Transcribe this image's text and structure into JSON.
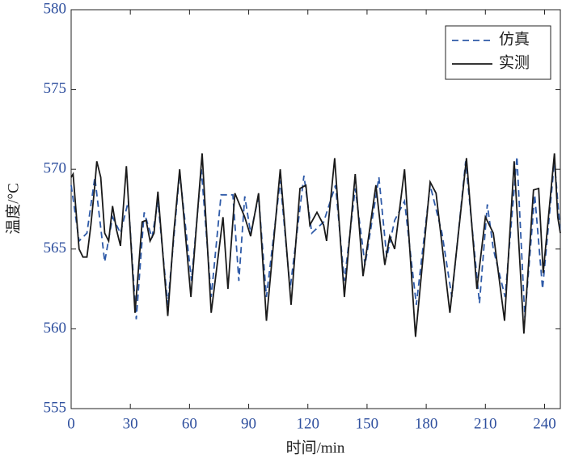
{
  "chart_data": {
    "type": "line",
    "x_label": "时间/min",
    "y_label": "温度/°C",
    "xlim": [
      0,
      248
    ],
    "ylim": [
      555,
      580
    ],
    "xticks": [
      0,
      30,
      60,
      90,
      120,
      150,
      180,
      210,
      240
    ],
    "yticks": [
      555,
      560,
      565,
      570,
      575,
      580
    ],
    "legend": "upper right",
    "series": [
      {
        "name": "仿真",
        "color": "#2e5aa8",
        "dash": true,
        "x": [
          0,
          4,
          8,
          12,
          17,
          21,
          25,
          29,
          33,
          37,
          41,
          44,
          49,
          55,
          61,
          66,
          71,
          76,
          82,
          85,
          88,
          91,
          95,
          99,
          106,
          111,
          118,
          122,
          128,
          134,
          138.5,
          144,
          149,
          156,
          160,
          164,
          169,
          175,
          182,
          188,
          193,
          200,
          207,
          211,
          214,
          220,
          226,
          230,
          235,
          239,
          245,
          248
        ],
        "values": [
          569,
          565.5,
          566,
          569.5,
          564.2,
          567,
          566,
          568,
          560.6,
          567.3,
          565.7,
          568,
          561.5,
          569.8,
          563,
          570,
          562,
          568.4,
          568.4,
          563,
          568.3,
          566,
          568.3,
          562,
          569.3,
          562.5,
          569.6,
          566,
          566.7,
          569,
          563,
          568.8,
          564,
          569.5,
          564.5,
          566.8,
          568,
          561.5,
          569,
          566,
          562,
          570.5,
          561.6,
          567.8,
          565,
          562,
          570.8,
          560.7,
          568.4,
          562.5,
          570.5,
          566
        ]
      },
      {
        "name": "实测",
        "color": "#1a1a1a",
        "dash": false,
        "x": [
          0,
          1,
          4,
          6,
          8,
          10,
          12,
          13,
          15,
          17,
          19,
          21,
          23,
          25,
          28,
          32.4,
          36,
          38,
          40,
          42,
          44,
          49,
          52,
          55,
          60.7,
          66.4,
          71,
          77,
          79.5,
          83,
          88,
          91,
          95,
          99,
          106,
          111.5,
          116,
          119,
          121,
          124.6,
          128,
          129.5,
          133.6,
          138.5,
          144,
          148,
          154.5,
          159,
          161.5,
          164,
          169,
          174.6,
          182,
          185,
          192,
          200.4,
          205.7,
          210,
          214,
          219.7,
          224.6,
          229.5,
          234.4,
          237,
          239.3,
          245,
          246.7,
          248
        ],
        "values": [
          569.5,
          569.7,
          565,
          564.5,
          564.5,
          566.5,
          569,
          570.5,
          569.5,
          566,
          565.5,
          567.7,
          566.2,
          565.2,
          570.2,
          561,
          566.7,
          566.8,
          565.5,
          566,
          568.6,
          560.8,
          566,
          570,
          562,
          571,
          561,
          567,
          562.5,
          568.5,
          567,
          565.8,
          568.5,
          560.5,
          570,
          561.5,
          568.8,
          569,
          566.5,
          567.3,
          566.5,
          565.5,
          570.7,
          562,
          569.7,
          563.3,
          569,
          564,
          565.8,
          565,
          570,
          559.5,
          569.2,
          568.5,
          561,
          570.7,
          562.5,
          567,
          566,
          560.5,
          570.5,
          559.7,
          568.7,
          568.8,
          563.5,
          571,
          567,
          566
        ]
      }
    ]
  }
}
